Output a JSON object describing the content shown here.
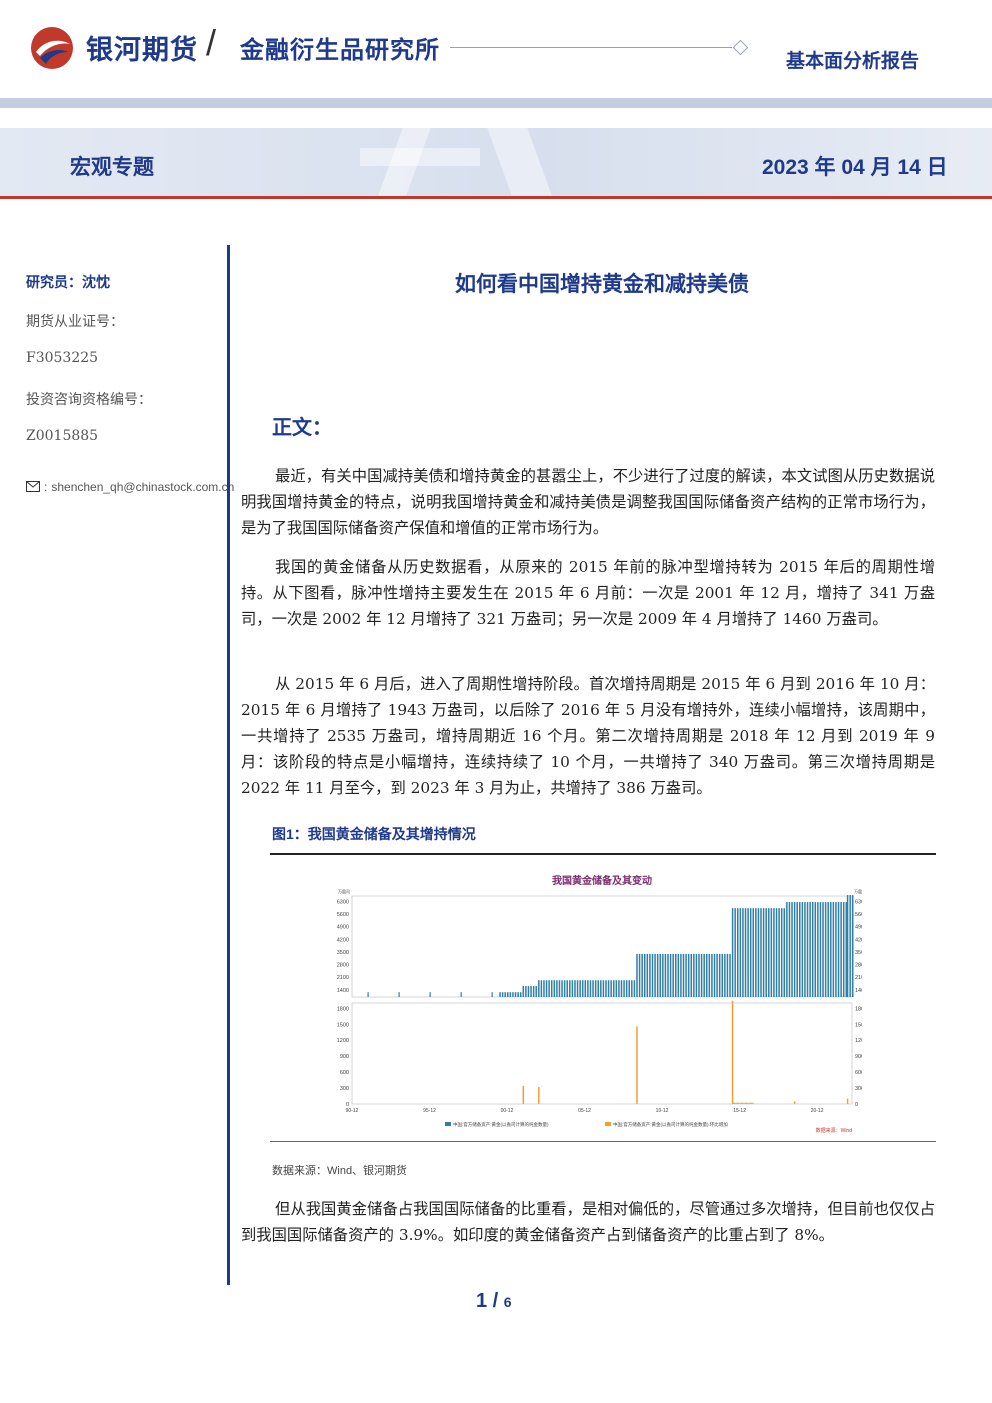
{
  "header": {
    "brand": "银河期货",
    "institute": "金融衍生品研究所",
    "report_type": "基本面分析报告",
    "topic": "宏观专题",
    "date": "2023 年 04 月 14 日"
  },
  "sidebar": {
    "researcher": "研究员：沈忱",
    "license_label": "期货从业证号：",
    "license_no": "F3053225",
    "consult_label": "投资咨询资格编号：",
    "consult_no": "Z0015885",
    "email": "shenchen_qh@chinastock.com.cn",
    "email_icon": "mail-icon"
  },
  "article": {
    "title": "如何看中国增持黄金和减持美债",
    "section": "正文：",
    "p1": "最近，有关中国减持美债和增持黄金的甚嚣尘上，不少进行了过度的解读，本文试图从历史数据说明我国增持黄金的特点，说明我国增持黄金和减持美债是调整我国国际储备资产结构的正常市场行为，是为了我国国际储备资产保值和增值的正常市场行为。",
    "p2": "我国的黄金储备从历史数据看，从原来的 2015 年前的脉冲型增持转为 2015 年后的周期性增持。从下图看，脉冲性增持主要发生在 2015 年 6 月前：一次是 2001 年 12 月，增持了 341 万盎司，一次是 2002 年 12 月增持了 321 万盎司；另一次是 2009 年 4 月增持了 1460 万盎司。",
    "p3": "从 2015 年 6 月后，进入了周期性增持阶段。首次增持周期是 2015 年 6 月到 2016 年 10 月：2015 年 6 月增持了 1943 万盎司，以后除了 2016 年 5 月没有增持外，连续小幅增持，该周期中，一共增持了 2535 万盎司，增持周期近 16 个月。第二次增持周期是 2018 年 12 月到 2019 年 9 月：该阶段的特点是小幅增持，连续持续了 10 个月，一共增持了 340 万盎司。第三次增持周期是 2022 年 11 月至今，到 2023 年 3 月为止，共增持了 386 万盎司。",
    "figure_caption": "图1：我国黄金储备及其增持情况",
    "source": "数据来源：Wind、银河期货",
    "p4": "但从我国黄金储备占我国国际储备的比重看，是相对偏低的，尽管通过多次增持，但目前也仅仅占到我国国际储备资产的 3.9%。如印度的黄金储备资产占到储备资产的比重占到了 8%。"
  },
  "footer": {
    "page": "1",
    "total": "6"
  },
  "chart_data": {
    "type": "bar",
    "title": "我国黄金储备及其变动",
    "unit_label": "万盎司",
    "source_note": "数据来源：Wind",
    "x_ticks": [
      "90-12",
      "95-12",
      "00-12",
      "05-12",
      "10-12",
      "15-12",
      "20-12"
    ],
    "top_panel": {
      "yticks": [
        1400,
        2100,
        2800,
        3500,
        4200,
        4900,
        5600,
        6300
      ],
      "ylim": [
        1000,
        6600
      ],
      "series_name": "中国:官方储备资产:黄金(以盎司计算的纯金数量)",
      "color": "#2f7fa8",
      "levels": [
        {
          "from": "1990-12",
          "to": "2001-11",
          "value": 1267
        },
        {
          "from": "2001-12",
          "to": "2002-11",
          "value": 1608
        },
        {
          "from": "2002-12",
          "to": "2009-03",
          "value": 1929
        },
        {
          "from": "2009-04",
          "to": "2015-05",
          "value": 3389
        },
        {
          "from": "2015-06",
          "to": "2018-11",
          "value": 5924
        },
        {
          "from": "2018-12",
          "to": "2022-10",
          "value": 6264
        },
        {
          "from": "2022-11",
          "to": "2023-03",
          "value": 6650
        }
      ]
    },
    "bottom_panel": {
      "yticks": [
        0,
        300,
        600,
        900,
        1200,
        1500,
        1800
      ],
      "ylim": [
        0,
        1900
      ],
      "series_name": "中国:官方储备资产:黄金(以盎司计算的纯金数量):环比增加",
      "color": "#f0a030",
      "spikes": [
        {
          "date": "2001-12",
          "value": 341
        },
        {
          "date": "2002-12",
          "value": 321
        },
        {
          "date": "2009-04",
          "value": 1460
        },
        {
          "date": "2015-06",
          "value": 1943
        },
        {
          "date": "2019-06",
          "value": 50
        },
        {
          "date": "2022-11",
          "value": 100
        }
      ]
    },
    "legend": [
      {
        "name": "中国:官方储备资产:黄金(以盎司计算的纯金数量)",
        "color": "#2f7fa8"
      },
      {
        "name": "中国:官方储备资产:黄金(以盎司计算的纯金数量):环比增加",
        "color": "#f0a030"
      }
    ],
    "accent_color": "#1f3a8a",
    "title_color": "#7b2d6f"
  }
}
